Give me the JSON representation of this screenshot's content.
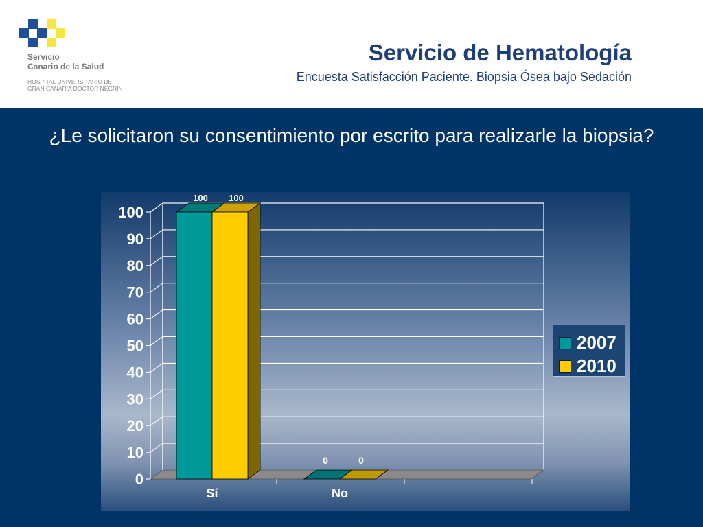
{
  "header": {
    "org_line1": "Servicio",
    "org_line2": "Canario de la Salud",
    "hospital_line1": "HOSPITAL UNIVERSITARIO DE",
    "hospital_line2": "GRAN CANARIA DOCTOR NEGRÍN",
    "title": "Servicio de Hematología",
    "subtitle": "Encuesta Satisfacción Paciente. Biopsia Ósea bajo Sedación"
  },
  "question": "¿Le solicitaron su consentimiento por escrito para realizarle la biopsia?",
  "colors": {
    "background": "#003466",
    "series_2007": "#00999a",
    "series_2010": "#ffcc00",
    "logo_blue": "#1f4f9c",
    "logo_yellow": "#f5e642"
  },
  "chart_data": {
    "type": "bar",
    "categories": [
      "Sí",
      "No"
    ],
    "series": [
      {
        "name": "2007",
        "values": [
          100,
          0
        ]
      },
      {
        "name": "2010",
        "values": [
          100,
          0
        ]
      }
    ],
    "data_labels": [
      [
        "100",
        "0"
      ],
      [
        "100",
        "0"
      ]
    ],
    "title": "",
    "xlabel": "",
    "ylabel": "",
    "ylim": [
      0,
      100
    ],
    "yticks": [
      "0",
      "10",
      "20",
      "30",
      "40",
      "50",
      "60",
      "70",
      "80",
      "90",
      "100"
    ],
    "grid": true,
    "three_d": true,
    "legend_position": "right"
  }
}
